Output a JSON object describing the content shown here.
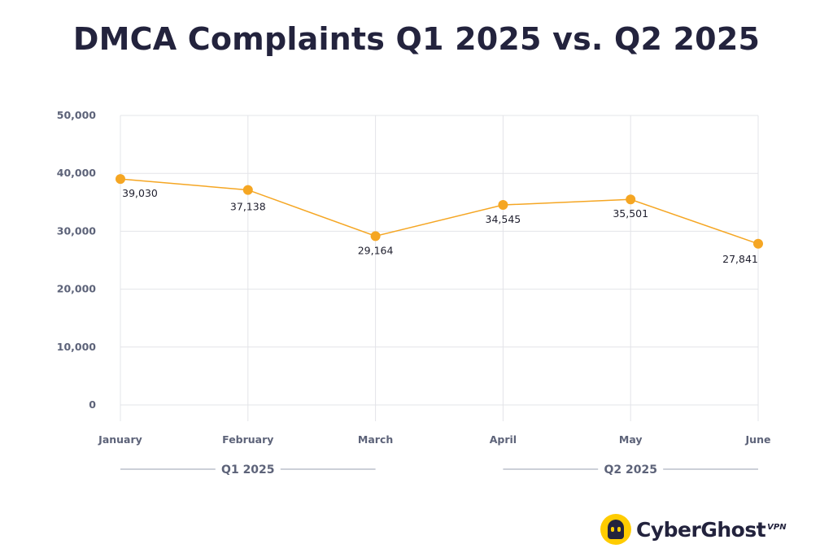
{
  "title": "DMCA Complaints Q1 2025 vs. Q2 2025",
  "brand": {
    "name": "CyberGhost",
    "suffix": "VPN",
    "icon": "cyberghost-logo-icon",
    "color": "#ffcc00"
  },
  "colors": {
    "line": "#f5a623",
    "point": "#f5a623",
    "grid": "#e3e4e8",
    "axis_text": "#5d6379",
    "title": "#23233d"
  },
  "chart_data": {
    "type": "line",
    "title": "DMCA Complaints Q1 2025 vs. Q2 2025",
    "categories": [
      "January",
      "February",
      "March",
      "April",
      "May",
      "June"
    ],
    "series": [
      {
        "values": [
          39030,
          37138,
          29164,
          34545,
          35501,
          27841
        ]
      }
    ],
    "data_labels": [
      "39,030",
      "37,138",
      "29,164",
      "34,545",
      "35,501",
      "27,841"
    ],
    "ylim": [
      0,
      50000
    ],
    "yticks": [
      0,
      10000,
      20000,
      30000,
      40000,
      50000
    ],
    "ytick_labels": [
      "0",
      "10,000",
      "20,000",
      "30,000",
      "40,000",
      "50,000"
    ],
    "grid": true,
    "groups": [
      {
        "label": "Q1 2025",
        "categories": [
          "January",
          "February",
          "March"
        ]
      },
      {
        "label": "Q2 2025",
        "categories": [
          "April",
          "May",
          "June"
        ]
      }
    ]
  }
}
